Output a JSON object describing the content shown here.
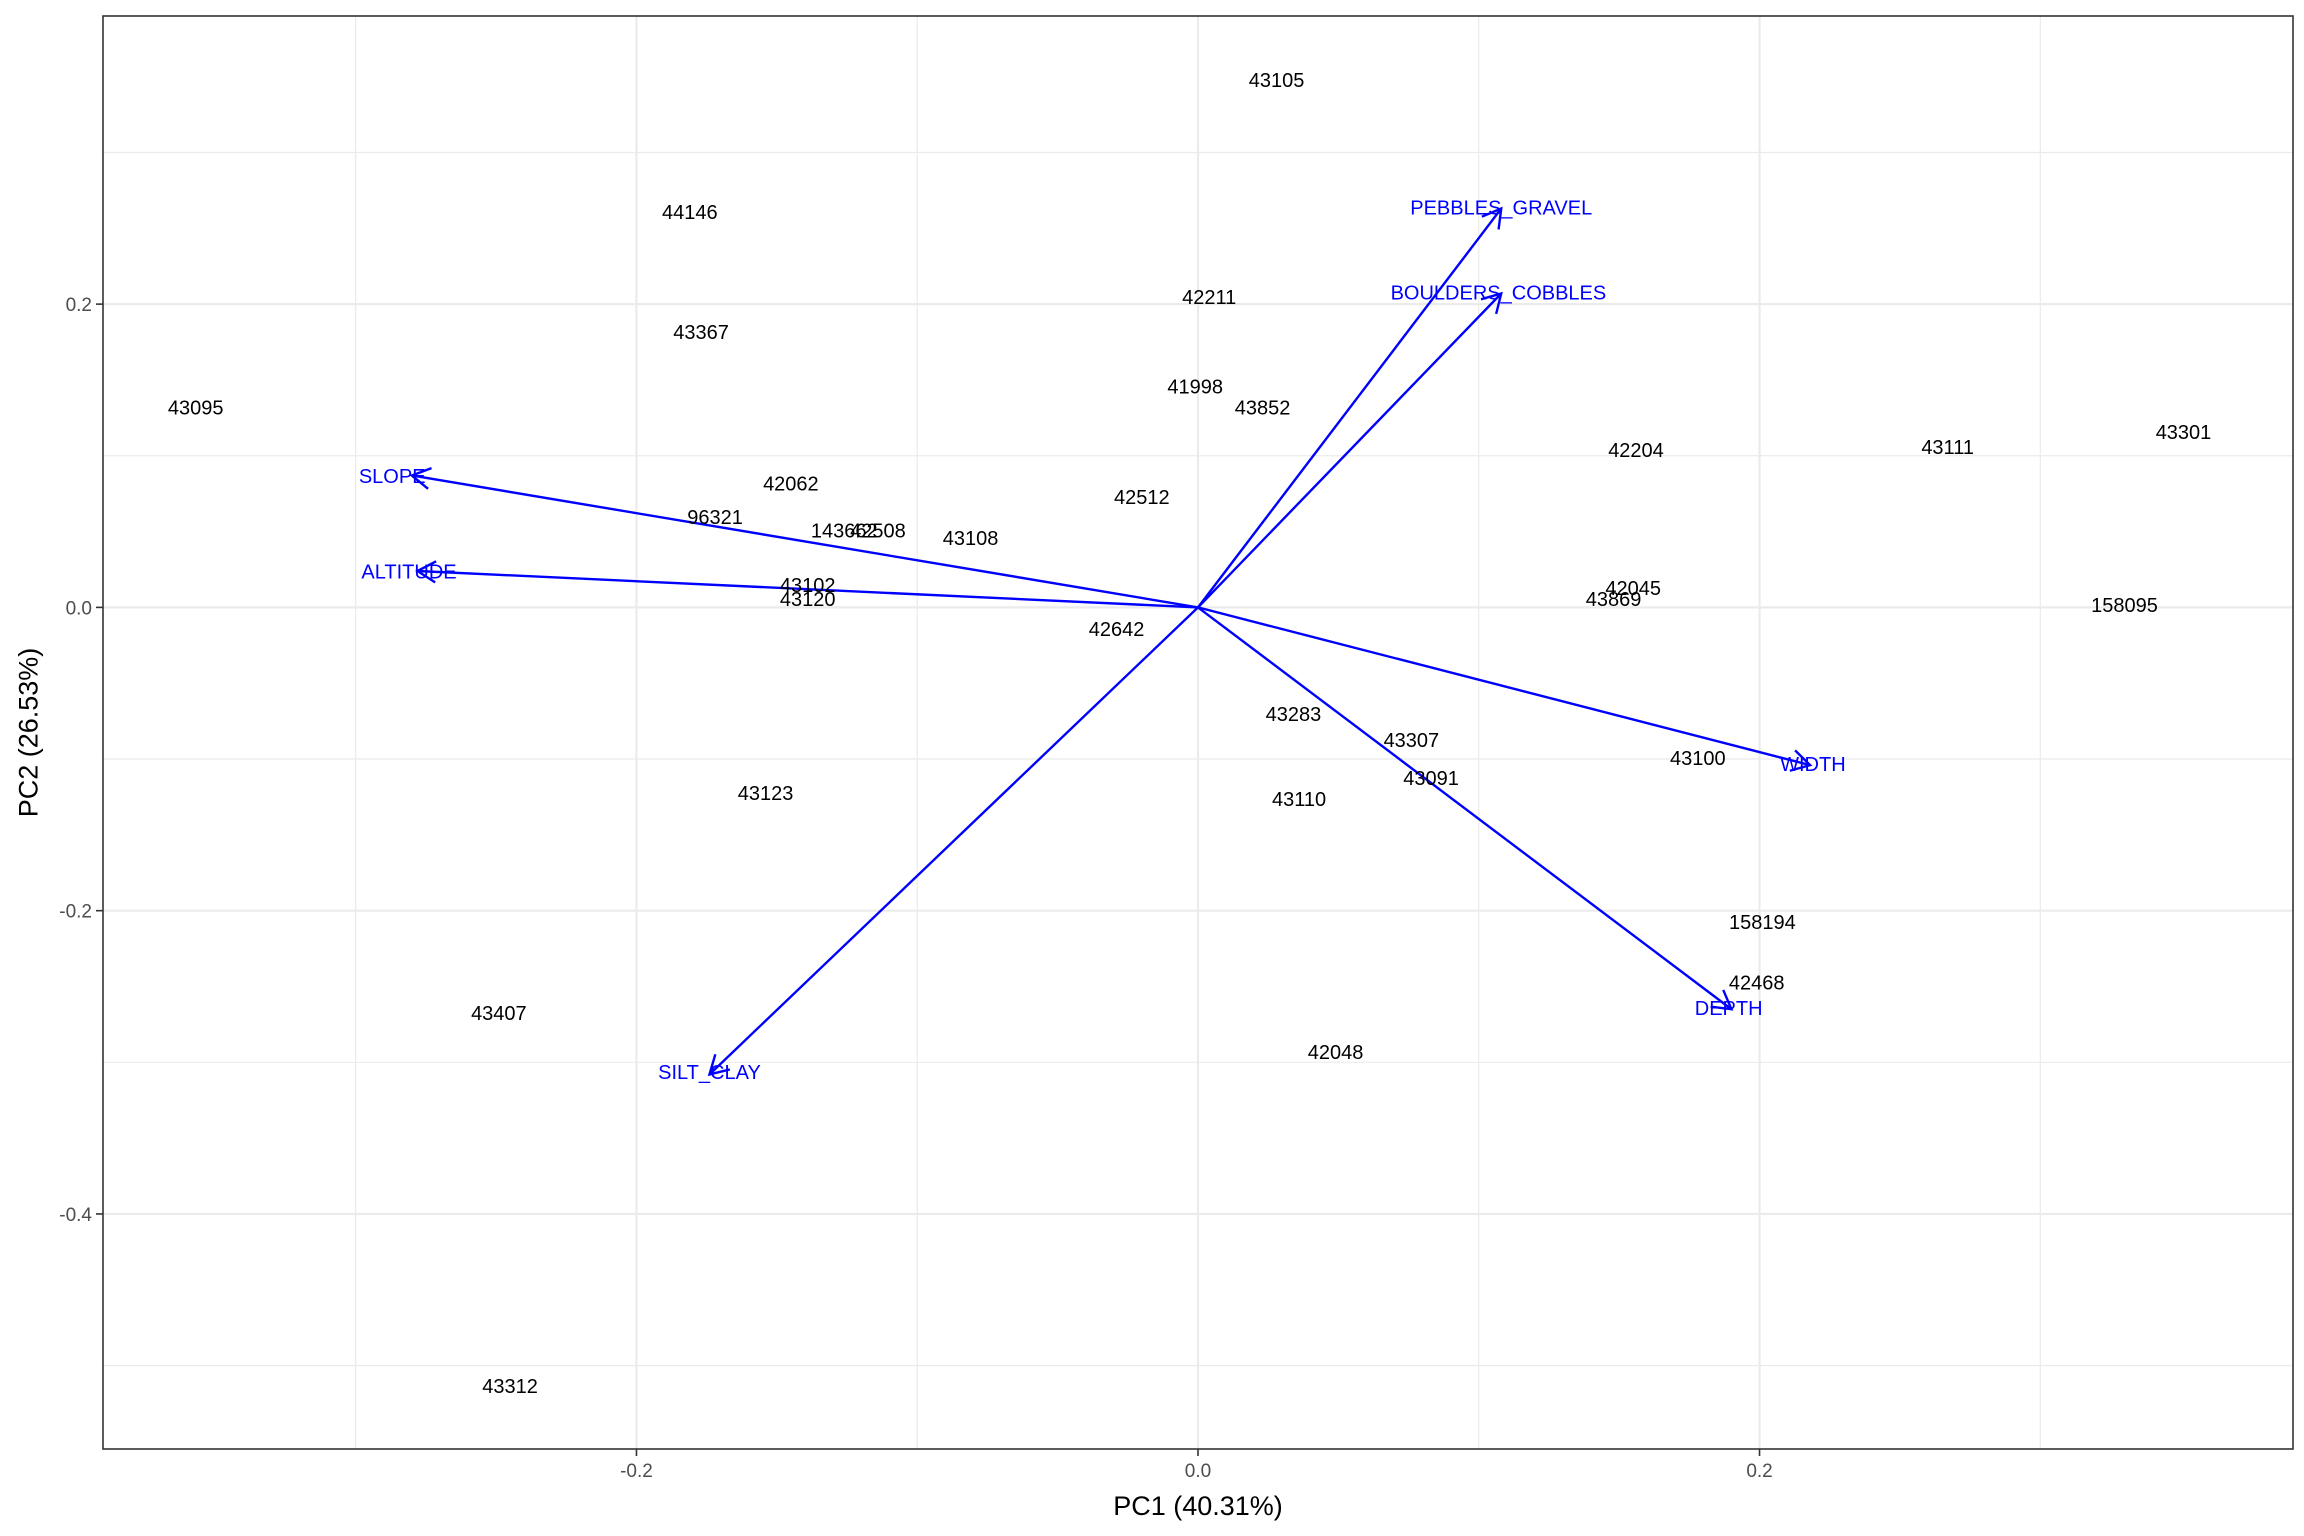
{
  "chart_data": {
    "type": "scatter",
    "subtype": "pca-biplot",
    "title": "",
    "xlabel": "PC1 (40.31%)",
    "ylabel": "PC2 (26.53%)",
    "xlim": [
      -0.39,
      0.39
    ],
    "ylim": [
      -0.555,
      0.39
    ],
    "x_ticks": [
      {
        "value": -0.2,
        "label": "-0.2"
      },
      {
        "value": 0.0,
        "label": "0.0"
      },
      {
        "value": 0.2,
        "label": "0.2"
      }
    ],
    "y_ticks": [
      {
        "value": -0.4,
        "label": "-0.4"
      },
      {
        "value": -0.2,
        "label": "-0.2"
      },
      {
        "value": 0.0,
        "label": "0.0"
      },
      {
        "value": 0.2,
        "label": "0.2"
      }
    ],
    "x_minor_grid": [
      -0.3,
      -0.1,
      0.1,
      0.3
    ],
    "y_minor_grid": [
      -0.5,
      -0.3,
      -0.1,
      0.1,
      0.3
    ],
    "grid": true,
    "colors": {
      "points": "#000000",
      "vectors": "#0000ff",
      "grid": "#ebebeb",
      "panel_border": "#333333"
    },
    "points": [
      {
        "label": "43105",
        "x": 0.028,
        "y": 0.347
      },
      {
        "label": "44146",
        "x": -0.181,
        "y": 0.26
      },
      {
        "label": "42211",
        "x": 0.004,
        "y": 0.204
      },
      {
        "label": "43367",
        "x": -0.177,
        "y": 0.181
      },
      {
        "label": "43095",
        "x": -0.357,
        "y": 0.131
      },
      {
        "label": "41998",
        "x": -0.001,
        "y": 0.145
      },
      {
        "label": "43852",
        "x": 0.023,
        "y": 0.131
      },
      {
        "label": "42204",
        "x": 0.156,
        "y": 0.103
      },
      {
        "label": "43111",
        "x": 0.267,
        "y": 0.105
      },
      {
        "label": "43301",
        "x": 0.351,
        "y": 0.115
      },
      {
        "label": "42062",
        "x": -0.145,
        "y": 0.081
      },
      {
        "label": "96321",
        "x": -0.172,
        "y": 0.059
      },
      {
        "label": "143662",
        "x": -0.126,
        "y": 0.05
      },
      {
        "label": "42508",
        "x": -0.114,
        "y": 0.05
      },
      {
        "label": "43108",
        "x": -0.081,
        "y": 0.045
      },
      {
        "label": "42512",
        "x": -0.02,
        "y": 0.072
      },
      {
        "label": "43102",
        "x": -0.139,
        "y": 0.014
      },
      {
        "label": "43120",
        "x": -0.139,
        "y": 0.005
      },
      {
        "label": "42642",
        "x": -0.029,
        "y": -0.015
      },
      {
        "label": "42045",
        "x": 0.155,
        "y": 0.012
      },
      {
        "label": "43869",
        "x": 0.148,
        "y": 0.005
      },
      {
        "label": "158095",
        "x": 0.33,
        "y": 0.001
      },
      {
        "label": "43283",
        "x": 0.034,
        "y": -0.071
      },
      {
        "label": "43307",
        "x": 0.076,
        "y": -0.088
      },
      {
        "label": "43091",
        "x": 0.083,
        "y": -0.113
      },
      {
        "label": "43100",
        "x": 0.178,
        "y": -0.1
      },
      {
        "label": "43110",
        "x": 0.036,
        "y": -0.127
      },
      {
        "label": "43123",
        "x": -0.154,
        "y": -0.123
      },
      {
        "label": "158194",
        "x": 0.201,
        "y": -0.208
      },
      {
        "label": "42468",
        "x": 0.199,
        "y": -0.248
      },
      {
        "label": "43407",
        "x": -0.249,
        "y": -0.268
      },
      {
        "label": "42048",
        "x": 0.049,
        "y": -0.294
      },
      {
        "label": "43312",
        "x": -0.245,
        "y": -0.514
      }
    ],
    "vectors": [
      {
        "label": "PEBBLES_GRAVEL",
        "x": 0.108,
        "y": 0.263,
        "label_x": 0.108,
        "label_y": 0.263
      },
      {
        "label": "BOULDERS_COBBLES",
        "x": 0.108,
        "y": 0.207,
        "label_x": 0.107,
        "label_y": 0.207
      },
      {
        "label": "SLOPE",
        "x": -0.28,
        "y": 0.087,
        "label_x": -0.287,
        "label_y": 0.086
      },
      {
        "label": "ALTITUDE",
        "x": -0.278,
        "y": 0.024,
        "label_x": -0.281,
        "label_y": 0.023
      },
      {
        "label": "WIDTH",
        "x": 0.218,
        "y": -0.104,
        "label_x": 0.219,
        "label_y": -0.104
      },
      {
        "label": "DEPTH",
        "x": 0.19,
        "y": -0.265,
        "label_x": 0.189,
        "label_y": -0.265
      },
      {
        "label": "SILT_CLAY",
        "x": -0.174,
        "y": -0.308,
        "label_x": -0.174,
        "label_y": -0.307
      }
    ]
  }
}
